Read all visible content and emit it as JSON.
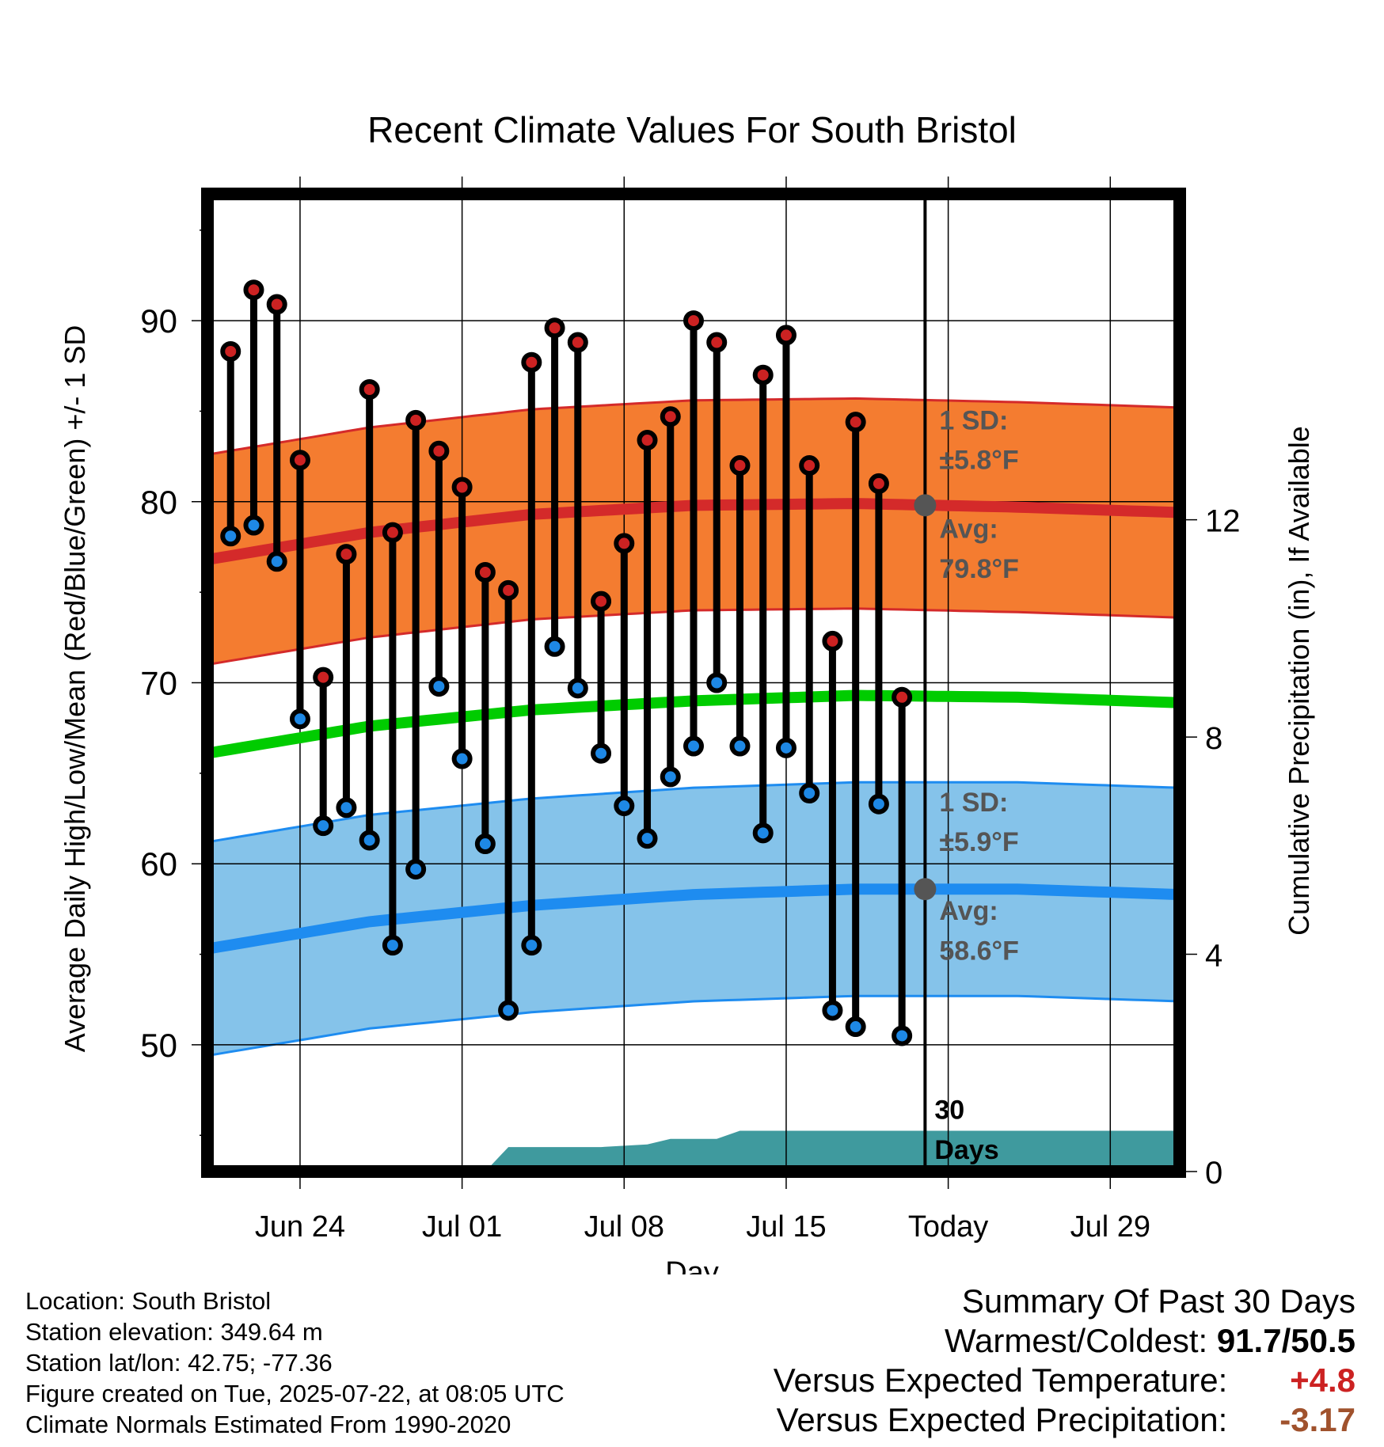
{
  "chart_data": {
    "type": "line",
    "title": "Recent Climate Values For South Bristol",
    "xlabel": "Day",
    "ylabel": "Average Daily High/Low/Mean (Red/Blue/Green) +/- 1 SD",
    "y2label": "Cumulative Precipitation (in), If Available",
    "ylim": [
      43,
      97
    ],
    "y2lim": [
      0,
      18
    ],
    "xlim": [
      "2025-06-20",
      "2025-08-01"
    ],
    "x_ticks": [
      "Jun 24",
      "Jul 01",
      "Jul 08",
      "Jul 15",
      "Today",
      "Jul 29"
    ],
    "y_ticks": [
      50,
      60,
      70,
      80,
      90
    ],
    "y2_ticks": [
      0,
      4,
      8,
      12
    ],
    "grid": true,
    "days": [
      "2025-06-21",
      "2025-06-22",
      "2025-06-23",
      "2025-06-24",
      "2025-06-25",
      "2025-06-26",
      "2025-06-27",
      "2025-06-28",
      "2025-06-29",
      "2025-06-30",
      "2025-07-01",
      "2025-07-02",
      "2025-07-03",
      "2025-07-04",
      "2025-07-05",
      "2025-07-06",
      "2025-07-07",
      "2025-07-08",
      "2025-07-09",
      "2025-07-10",
      "2025-07-11",
      "2025-07-12",
      "2025-07-13",
      "2025-07-14",
      "2025-07-15",
      "2025-07-16",
      "2025-07-17",
      "2025-07-18",
      "2025-07-19",
      "2025-07-20",
      "2025-07-21"
    ],
    "daily_high": [
      88.3,
      91.7,
      90.9,
      82.3,
      70.3,
      77.1,
      86.2,
      78.3,
      84.5,
      82.8,
      80.8,
      76.1,
      75.1,
      87.7,
      89.6,
      88.8,
      74.5,
      77.7,
      83.4,
      84.7,
      90.0,
      88.8,
      82.0,
      87.0,
      89.2,
      82.0,
      72.3,
      84.4,
      81.0,
      69.2,
      null
    ],
    "daily_low": [
      78.1,
      78.7,
      76.7,
      68.0,
      62.1,
      63.1,
      61.3,
      55.5,
      59.7,
      69.8,
      65.8,
      61.1,
      51.9,
      55.5,
      72.0,
      69.7,
      66.1,
      63.2,
      61.4,
      64.8,
      66.5,
      70.0,
      66.5,
      61.7,
      66.4,
      63.9,
      51.9,
      51.0,
      63.3,
      50.5,
      null
    ],
    "normal_high": {
      "x": [
        "2025-06-20",
        "2025-06-27",
        "2025-07-04",
        "2025-07-11",
        "2025-07-18",
        "2025-07-25",
        "2025-08-01"
      ],
      "values": [
        76.8,
        78.3,
        79.3,
        79.8,
        79.9,
        79.7,
        79.4
      ]
    },
    "normal_low": {
      "x": [
        "2025-06-20",
        "2025-06-27",
        "2025-07-04",
        "2025-07-11",
        "2025-07-18",
        "2025-07-25",
        "2025-08-01"
      ],
      "values": [
        55.3,
        56.8,
        57.7,
        58.3,
        58.6,
        58.6,
        58.3
      ]
    },
    "normal_mean": {
      "x": [
        "2025-06-20",
        "2025-06-27",
        "2025-07-04",
        "2025-07-11",
        "2025-07-18",
        "2025-07-25",
        "2025-08-01"
      ],
      "values": [
        66.1,
        67.6,
        68.5,
        69.0,
        69.3,
        69.2,
        68.9
      ]
    },
    "high_sd": 5.8,
    "low_sd": 5.9,
    "precip_cumulative": {
      "x": [
        "2025-06-20",
        "2025-07-02",
        "2025-07-03",
        "2025-07-07",
        "2025-07-09",
        "2025-07-10",
        "2025-07-12",
        "2025-07-13",
        "2025-08-01"
      ],
      "values": [
        0.0,
        0.0,
        0.45,
        0.45,
        0.5,
        0.6,
        0.6,
        0.75,
        0.75
      ]
    },
    "today": "2025-07-21",
    "today_label": "Today",
    "window_label_1": "30",
    "window_label_2": "Days",
    "annotations": {
      "high_sd_label_1": "1 SD:",
      "high_sd_label_2": "±5.8°F",
      "high_avg_label_1": "Avg:",
      "high_avg_label_2": "79.8°F",
      "low_sd_label_1": "1 SD:",
      "low_sd_label_2": "±5.9°F",
      "low_avg_label_1": "Avg:",
      "low_avg_label_2": "58.6°F",
      "today_high_avg": 79.8,
      "today_low_avg": 58.6
    },
    "colors": {
      "high_band": "#f47c30",
      "high_line": "#d42a2a",
      "low_band": "#85c3ea",
      "low_line": "#1e8cf0",
      "mean_line": "#00cc00",
      "precip": "#3f9a9e",
      "high_dot": "#cc2222",
      "low_dot": "#1e88e5",
      "annotation": "#555555",
      "today_dot": "#555555"
    }
  },
  "footer": {
    "location": "Location: South Bristol",
    "elevation": "Station elevation: 349.64 m",
    "latlon": "Station lat/lon: 42.75; -77.36",
    "created": "Figure created on Tue, 2025-07-22, at 08:05 UTC",
    "normals": "Climate Normals Estimated From 1990-2020"
  },
  "summary": {
    "title": "Summary Of Past 30 Days",
    "warm_cold_label": "Warmest/Coldest:",
    "warm_cold_value": "91.7/50.5",
    "temp_label": "Versus Expected Temperature:",
    "temp_value": "+4.8",
    "temp_color": "#cc2222",
    "precip_label": "Versus Expected Precipitation:",
    "precip_value": "-3.17",
    "precip_color": "#a0522d"
  }
}
